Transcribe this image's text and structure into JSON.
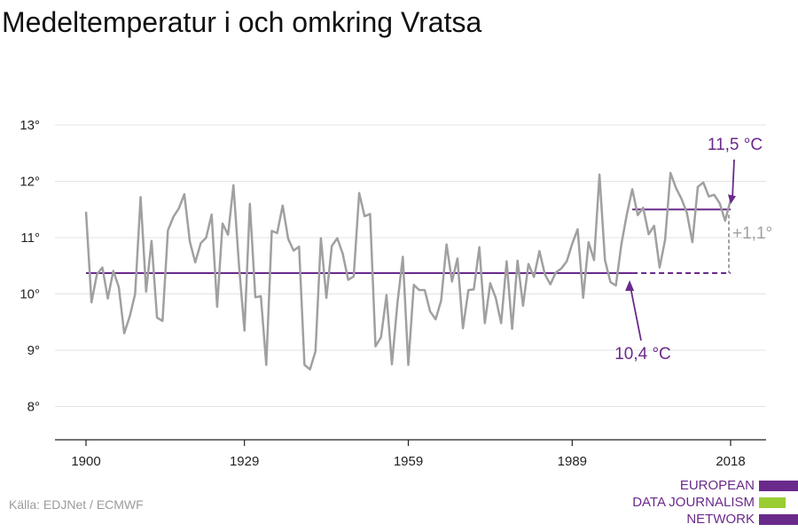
{
  "title": "Medeltemperatur i och omkring Vratsa",
  "source": "Källa: EDJNet / ECMWF",
  "logo": {
    "lines": [
      "EUROPEAN",
      "DATA JOURNALISM",
      "NETWORK"
    ],
    "colors": {
      "purple": "#6a2a8b",
      "green": "#9acd32"
    }
  },
  "colors": {
    "line": "#a0a0a0",
    "mean": "#6a2a8b",
    "annotation_purple": "#6a2a8b",
    "annotation_gray": "#a0a0a0",
    "grid": "#e3e3e3",
    "axis": "#222222"
  },
  "chart_data": {
    "type": "line",
    "title": "Medeltemperatur i och omkring Vratsa",
    "xlabel": "",
    "ylabel": "",
    "xlim": [
      1900,
      2018
    ],
    "ylim": [
      7.4,
      13
    ],
    "x_ticks": [
      1900,
      1929,
      1959,
      1989,
      2018
    ],
    "x_tick_labels": [
      "1900",
      "1929",
      "1959",
      "1989",
      "2018"
    ],
    "y_ticks": [
      8,
      9,
      10,
      11,
      12,
      13
    ],
    "y_tick_labels": [
      "8°",
      "9°",
      "10°",
      "11°",
      "12°",
      "13°"
    ],
    "grid": "horizontal",
    "series": [
      {
        "x": [
          1900,
          1901,
          1902,
          1903,
          1904,
          1905,
          1906,
          1907,
          1908,
          1909,
          1910,
          1911,
          1912,
          1913,
          1914,
          1915,
          1916,
          1917,
          1918,
          1919,
          1920,
          1921,
          1922,
          1923,
          1924,
          1925,
          1926,
          1927,
          1928,
          1929,
          1930,
          1931,
          1932,
          1933,
          1934,
          1935,
          1936,
          1937,
          1938,
          1939,
          1940,
          1941,
          1942,
          1943,
          1944,
          1945,
          1946,
          1947,
          1948,
          1949,
          1950,
          1951,
          1952,
          1953,
          1954,
          1955,
          1956,
          1957,
          1958,
          1959,
          1960,
          1961,
          1962,
          1963,
          1964,
          1965,
          1966,
          1967,
          1968,
          1969,
          1970,
          1971,
          1972,
          1973,
          1974,
          1975,
          1976,
          1977,
          1978,
          1979,
          1980,
          1981,
          1982,
          1983,
          1984,
          1985,
          1986,
          1987,
          1988,
          1989,
          1990,
          1991,
          1992,
          1993,
          1994,
          1995,
          1996,
          1997,
          1998,
          1999,
          2000,
          2001,
          2002,
          2003,
          2004,
          2005,
          2006,
          2007,
          2008,
          2009,
          2010,
          2011,
          2012,
          2013,
          2014,
          2015,
          2016,
          2017,
          2018
        ],
        "values": [
          11.46,
          9.85,
          10.35,
          10.47,
          9.92,
          10.41,
          10.12,
          9.3,
          9.6,
          10.0,
          11.72,
          10.04,
          10.94,
          9.58,
          9.52,
          11.13,
          11.37,
          11.52,
          11.77,
          10.93,
          10.56,
          10.9,
          11.0,
          11.41,
          9.77,
          11.25,
          11.05,
          11.93,
          10.52,
          9.35,
          11.6,
          9.94,
          9.96,
          8.74,
          11.12,
          11.08,
          11.57,
          10.98,
          10.77,
          10.84,
          8.74,
          8.66,
          8.98,
          10.99,
          9.93,
          10.85,
          10.99,
          10.71,
          10.25,
          10.31,
          11.79,
          11.38,
          11.42,
          9.07,
          9.23,
          9.98,
          8.75,
          9.83,
          10.66,
          8.74,
          10.16,
          10.07,
          10.07,
          9.69,
          9.55,
          9.88,
          10.88,
          10.22,
          10.63,
          9.39,
          10.07,
          10.08,
          10.83,
          9.48,
          10.19,
          9.93,
          9.48,
          10.58,
          9.38,
          10.59,
          9.79,
          10.53,
          10.3,
          10.76,
          10.35,
          10.17,
          10.38,
          10.45,
          10.58,
          10.89,
          11.15,
          9.93,
          10.92,
          10.6,
          12.12,
          10.6,
          10.21,
          10.15,
          10.88,
          11.41,
          11.86,
          11.4,
          11.53,
          11.06,
          11.21,
          10.47,
          10.96,
          12.15,
          11.88,
          11.69,
          11.44,
          10.92,
          11.9,
          11.98,
          11.73,
          11.76,
          11.61,
          11.3,
          11.67
        ]
      }
    ],
    "reference_lines": [
      {
        "label": "10,4 °C",
        "value": 10.37,
        "x_start": 1900,
        "x_end": 2000,
        "style": "solid",
        "dashed_extension_to": 2018
      },
      {
        "label": "11,5 °C",
        "value": 11.5,
        "x_start": 2000,
        "x_end": 2018,
        "style": "solid"
      }
    ],
    "annotations": [
      {
        "text": "11,5 °C",
        "points_to_x": 2018,
        "points_to_y": 11.5,
        "color": "purple"
      },
      {
        "text": "10,4 °C",
        "points_to_x": 2000,
        "points_to_y": 10.37,
        "color": "purple"
      },
      {
        "text": "+1,1°",
        "x": 2018,
        "from_y": 10.37,
        "to_y": 11.5,
        "color": "gray"
      }
    ]
  }
}
